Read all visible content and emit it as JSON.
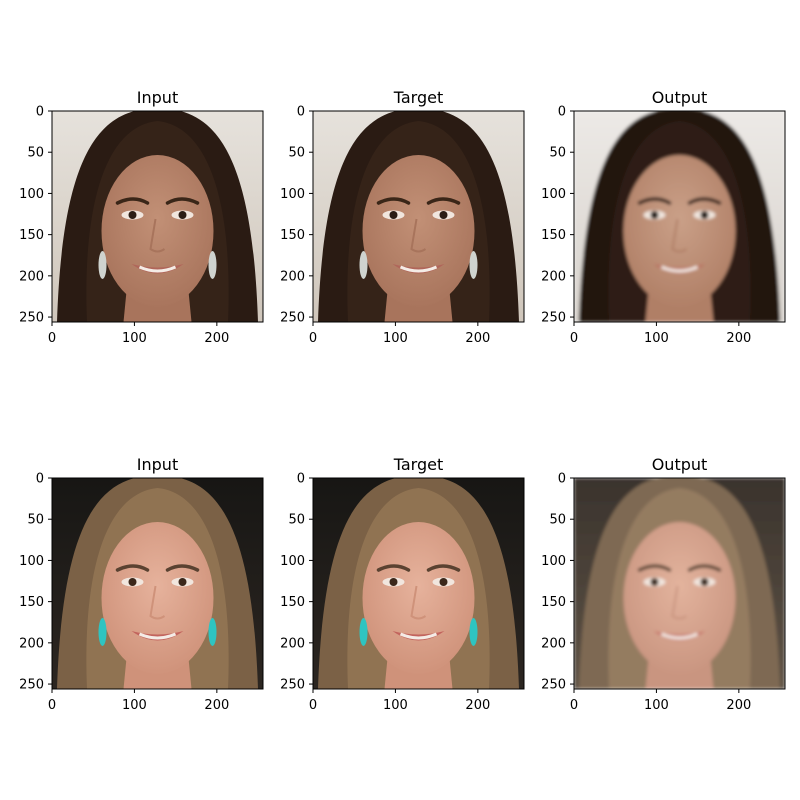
{
  "figure": {
    "rows": 2,
    "cols": 3
  },
  "chart_data": {
    "type": "image_grid",
    "panels": [
      {
        "row": 0,
        "col": 0,
        "title": "Input",
        "image": "portrait-woman-dark-hair-earrings",
        "xlim": [
          0,
          256
        ],
        "ylim": [
          256,
          0
        ],
        "xticks": [
          0,
          100,
          200
        ],
        "yticks": [
          0,
          50,
          100,
          150,
          200,
          250
        ]
      },
      {
        "row": 0,
        "col": 1,
        "title": "Target",
        "image": "portrait-woman-dark-hair-earrings",
        "xlim": [
          0,
          256
        ],
        "ylim": [
          256,
          0
        ],
        "xticks": [
          0,
          100,
          200
        ],
        "yticks": [
          0,
          50,
          100,
          150,
          200,
          250
        ]
      },
      {
        "row": 0,
        "col": 2,
        "title": "Output",
        "image": "portrait-woman-dark-hair-generated",
        "xlim": [
          0,
          256
        ],
        "ylim": [
          256,
          0
        ],
        "xticks": [
          0,
          100,
          200
        ],
        "yticks": [
          0,
          50,
          100,
          150,
          200,
          250
        ]
      },
      {
        "row": 1,
        "col": 0,
        "title": "Input",
        "image": "portrait-woman-light-hair-turquoise-earrings",
        "xlim": [
          0,
          256
        ],
        "ylim": [
          256,
          0
        ],
        "xticks": [
          0,
          100,
          200
        ],
        "yticks": [
          0,
          50,
          100,
          150,
          200,
          250
        ]
      },
      {
        "row": 1,
        "col": 1,
        "title": "Target",
        "image": "portrait-woman-light-hair-turquoise-earrings",
        "xlim": [
          0,
          256
        ],
        "ylim": [
          256,
          0
        ],
        "xticks": [
          0,
          100,
          200
        ],
        "yticks": [
          0,
          50,
          100,
          150,
          200,
          250
        ]
      },
      {
        "row": 1,
        "col": 2,
        "title": "Output",
        "image": "portrait-woman-light-hair-generated",
        "xlim": [
          0,
          256
        ],
        "ylim": [
          256,
          0
        ],
        "xticks": [
          0,
          100,
          200
        ],
        "yticks": [
          0,
          50,
          100,
          150,
          200,
          250
        ]
      }
    ]
  },
  "palettes": {
    "dark": {
      "bg_top": "#e6e2dc",
      "bg_bottom": "#cfc6bb",
      "hair": "#2a1b13",
      "hair_mid": "#3e291d",
      "skin": "#c29076",
      "skin_shade": "#a8745c",
      "lips": "#b0665a",
      "eyes": "#2b1d15",
      "brows": "#3a2618",
      "earring": "#cfd3cf"
    },
    "dark_out": {
      "bg_top": "#ece9e6",
      "bg_bottom": "#d7d2cc",
      "hair": "#22160f",
      "hair_mid": "#3a2619",
      "skin": "#caa088",
      "skin_shade": "#b07f66",
      "lips": "#b96a5c",
      "eyes": "#1e1510",
      "brows": "#2d1d12",
      "earring": "none"
    },
    "light": {
      "bg_top": "#171614",
      "bg_bottom": "#2c2621",
      "hair": "#7b6146",
      "hair_mid": "#a3835c",
      "skin": "#e6b29c",
      "skin_shade": "#cf927a",
      "lips": "#c2645d",
      "eyes": "#3b271a",
      "brows": "#5a4231",
      "earring": "#2ec4c1"
    },
    "light_out": {
      "bg_top": "#3a332d",
      "bg_bottom": "#5f5346",
      "hair": "#7e6952",
      "hair_mid": "#a58d6d",
      "skin": "#e3b39d",
      "skin_shade": "#c99580",
      "lips": "#c46c63",
      "eyes": "#3b2a1e",
      "brows": "#5d4736",
      "earring": "none"
    }
  }
}
